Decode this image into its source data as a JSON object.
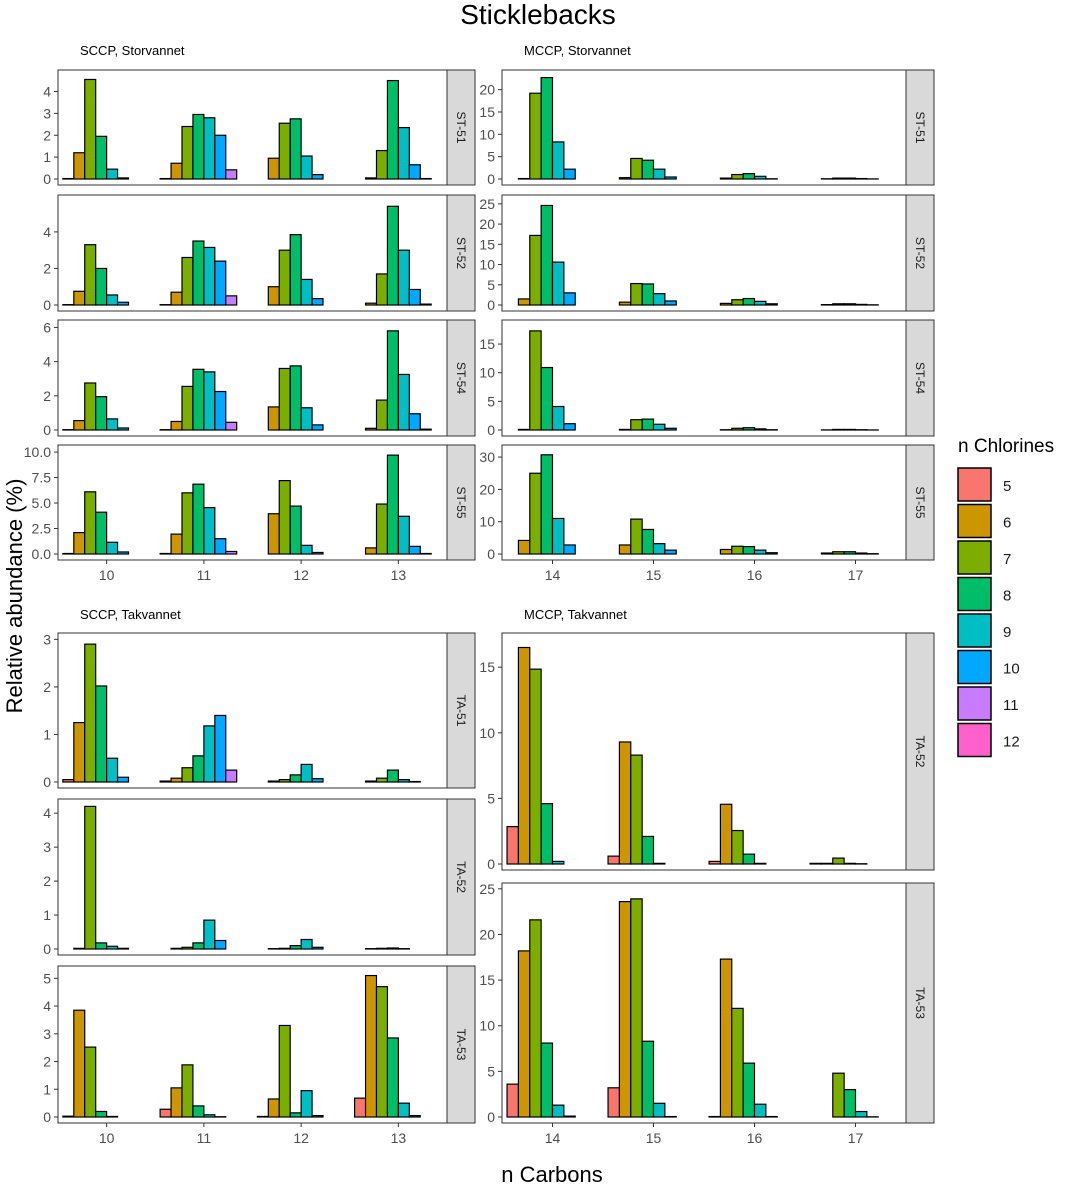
{
  "chart_data": {
    "type": "bar",
    "title": "Sticklebacks",
    "xlabel": "n Carbons",
    "ylabel": "Relative abundance (%)",
    "legend": {
      "title": "n Chlorines",
      "position": "right",
      "entries": [
        "5",
        "6",
        "7",
        "8",
        "9",
        "10",
        "11",
        "12"
      ],
      "colors": [
        "#F8766D",
        "#CD9600",
        "#7CAE00",
        "#00BE67",
        "#00BFC4",
        "#00A9FF",
        "#C77CFF",
        "#FF61CC"
      ]
    },
    "panel_groups": [
      {
        "title": "SCCP, Storvannet",
        "categories": [
          "10",
          "11",
          "12",
          "13"
        ],
        "cl_start": 5,
        "panels": [
          {
            "strip": "ST-51",
            "ylim": [
              0,
              4.8
            ],
            "yticks": [
              "0",
              "1",
              "2",
              "3",
              "4"
            ],
            "values": [
              [
                0.02,
                1.2,
                4.55,
                1.95,
                0.45,
                0.05,
                0,
                0
              ],
              [
                0.02,
                0.72,
                2.4,
                2.95,
                2.8,
                2.0,
                0.42,
                0
              ],
              [
                0,
                0.95,
                2.55,
                2.75,
                1.05,
                0.2,
                0,
                0
              ],
              [
                0,
                0.05,
                1.3,
                4.5,
                2.35,
                0.65,
                0.02,
                0
              ]
            ]
          },
          {
            "strip": "ST-52",
            "ylim": [
              0,
              5.8
            ],
            "yticks": [
              "0",
              "2",
              "4"
            ],
            "values": [
              [
                0.02,
                0.75,
                3.3,
                2.0,
                0.55,
                0.15,
                0,
                0
              ],
              [
                0.02,
                0.7,
                2.6,
                3.5,
                3.15,
                2.4,
                0.5,
                0
              ],
              [
                0,
                1.0,
                3.0,
                3.85,
                1.4,
                0.35,
                0,
                0
              ],
              [
                0,
                0.1,
                1.7,
                5.4,
                3.0,
                0.85,
                0.05,
                0
              ]
            ]
          },
          {
            "strip": "ST-54",
            "ylim": [
              0,
              6.2
            ],
            "yticks": [
              "0",
              "2",
              "4",
              "6"
            ],
            "values": [
              [
                0.02,
                0.55,
                2.75,
                1.95,
                0.65,
                0.12,
                0,
                0
              ],
              [
                0.02,
                0.5,
                2.55,
                3.55,
                3.4,
                2.25,
                0.45,
                0
              ],
              [
                0,
                1.35,
                3.6,
                3.75,
                1.3,
                0.3,
                0,
                0
              ],
              [
                0,
                0.1,
                1.75,
                5.8,
                3.25,
                0.95,
                0.05,
                0
              ]
            ]
          },
          {
            "strip": "ST-55",
            "ylim": [
              0,
              10.3
            ],
            "yticks": [
              "0.0",
              "2.5",
              "5.0",
              "7.5",
              "10.0"
            ],
            "values": [
              [
                0.05,
                2.1,
                6.1,
                4.1,
                1.15,
                0.2,
                0,
                0
              ],
              [
                0.05,
                1.95,
                6.0,
                6.85,
                4.55,
                1.5,
                0.25,
                0
              ],
              [
                0,
                3.95,
                7.2,
                4.7,
                0.85,
                0.15,
                0,
                0
              ],
              [
                0,
                0.6,
                4.9,
                9.7,
                3.7,
                0.75,
                0.05,
                0
              ]
            ]
          }
        ]
      },
      {
        "title": "MCCP, Storvannet",
        "categories": [
          "14",
          "15",
          "16",
          "17"
        ],
        "cl_start": 5,
        "panels": [
          {
            "strip": "ST-51",
            "ylim": [
              0,
              23.5
            ],
            "yticks": [
              "0",
              "5",
              "10",
              "15",
              "20"
            ],
            "values": [
              [
                0,
                0.1,
                19.2,
                22.7,
                8.3,
                2.2,
                0,
                0
              ],
              [
                0,
                0.3,
                4.6,
                4.2,
                2.2,
                0.45,
                0,
                0
              ],
              [
                0,
                0.2,
                1.0,
                1.2,
                0.6,
                0.05,
                0,
                0
              ],
              [
                0,
                0.05,
                0.2,
                0.2,
                0.1,
                0.02,
                0,
                0
              ]
            ]
          },
          {
            "strip": "ST-52",
            "ylim": [
              0,
              26.2
            ],
            "yticks": [
              "0",
              "5",
              "10",
              "15",
              "20",
              "25"
            ],
            "values": [
              [
                0,
                1.5,
                17.2,
                24.6,
                10.6,
                3.0,
                0,
                0
              ],
              [
                0,
                0.7,
                5.3,
                5.2,
                2.8,
                1.0,
                0,
                0
              ],
              [
                0,
                0.4,
                1.3,
                1.6,
                0.9,
                0.3,
                0,
                0
              ],
              [
                0,
                0.1,
                0.3,
                0.3,
                0.15,
                0.05,
                0,
                0
              ]
            ]
          },
          {
            "strip": "ST-54",
            "ylim": [
              0,
              18.5
            ],
            "yticks": [
              "0",
              "5",
              "10",
              "15"
            ],
            "values": [
              [
                0,
                0.1,
                17.3,
                10.9,
                4.1,
                1.1,
                0,
                0
              ],
              [
                0,
                0.1,
                1.8,
                1.9,
                1.0,
                0.3,
                0,
                0
              ],
              [
                0,
                0.05,
                0.3,
                0.4,
                0.2,
                0.05,
                0,
                0
              ],
              [
                0,
                0.02,
                0.1,
                0.1,
                0.05,
                0.01,
                0,
                0
              ]
            ]
          },
          {
            "strip": "ST-55",
            "ylim": [
              0,
              32.5
            ],
            "yticks": [
              "0",
              "10",
              "20",
              "30"
            ],
            "values": [
              [
                0,
                4.2,
                25.0,
                30.7,
                11.0,
                2.8,
                0,
                0
              ],
              [
                0,
                2.8,
                10.8,
                7.6,
                3.2,
                1.2,
                0,
                0
              ],
              [
                0,
                1.4,
                2.4,
                2.3,
                1.2,
                0.4,
                0,
                0
              ],
              [
                0,
                0.3,
                0.7,
                0.7,
                0.3,
                0.1,
                0,
                0
              ]
            ]
          }
        ]
      },
      {
        "title": "SCCP, Takvannet",
        "categories": [
          "10",
          "11",
          "12",
          "13"
        ],
        "cl_start": 5,
        "panels": [
          {
            "strip": "TA-51",
            "ylim": [
              0,
              3.05
            ],
            "yticks": [
              "0",
              "1",
              "2",
              "3"
            ],
            "values": [
              [
                0.05,
                1.25,
                2.9,
                2.02,
                0.5,
                0.1,
                0,
                0
              ],
              [
                0.02,
                0.08,
                0.3,
                0.55,
                1.18,
                1.4,
                0.25,
                0
              ],
              [
                0,
                0.02,
                0.05,
                0.15,
                0.37,
                0.07,
                0,
                0
              ],
              [
                0,
                0.02,
                0.08,
                0.25,
                0.05,
                0.01,
                0,
                0
              ]
            ]
          },
          {
            "strip": "TA-52",
            "ylim": [
              0,
              4.3
            ],
            "yticks": [
              "0",
              "1",
              "2",
              "3",
              "4"
            ],
            "values": [
              [
                0,
                0.02,
                4.2,
                0.18,
                0.08,
                0.02,
                0,
                0
              ],
              [
                0,
                0.02,
                0.05,
                0.18,
                0.85,
                0.25,
                0,
                0
              ],
              [
                0,
                0.01,
                0.02,
                0.1,
                0.28,
                0.05,
                0,
                0
              ],
              [
                0,
                0.01,
                0.02,
                0.03,
                0.01,
                0,
                0,
                0
              ]
            ]
          },
          {
            "strip": "TA-53",
            "ylim": [
              0,
              5.3
            ],
            "yticks": [
              "0",
              "1",
              "2",
              "3",
              "4",
              "5"
            ],
            "values": [
              [
                0.03,
                3.85,
                2.52,
                0.2,
                0.02,
                0,
                0,
                0
              ],
              [
                0.28,
                1.05,
                1.88,
                0.4,
                0.08,
                0.01,
                0,
                0
              ],
              [
                0.02,
                0.65,
                3.3,
                0.15,
                0.95,
                0.05,
                0,
                0
              ],
              [
                0.68,
                5.1,
                4.7,
                2.85,
                0.5,
                0.05,
                0,
                0
              ]
            ]
          }
        ]
      },
      {
        "title": "MCCP, Takvannet",
        "categories": [
          "14",
          "15",
          "16",
          "17"
        ],
        "cl_start": 5,
        "panels": [
          {
            "strip": "TA-52",
            "ylim": [
              0,
              17.3
            ],
            "yticks": [
              "0",
              "5",
              "10",
              "15"
            ],
            "values": [
              [
                2.85,
                16.5,
                14.85,
                4.6,
                0.2,
                0,
                0,
                0
              ],
              [
                0.6,
                9.3,
                8.3,
                2.1,
                0.05,
                0,
                0,
                0
              ],
              [
                0.2,
                4.55,
                2.55,
                0.75,
                0.05,
                0,
                0,
                0
              ],
              [
                0.05,
                0.05,
                0.45,
                0.05,
                0.02,
                0,
                0,
                0
              ]
            ]
          },
          {
            "strip": "TA-53",
            "ylim": [
              0,
              25.2
            ],
            "yticks": [
              "0",
              "5",
              "10",
              "15",
              "20",
              "25"
            ],
            "values": [
              [
                3.6,
                18.2,
                21.6,
                8.1,
                1.3,
                0.1,
                0,
                0
              ],
              [
                3.2,
                23.6,
                23.9,
                8.3,
                1.5,
                0.05,
                0,
                0
              ],
              [
                0.05,
                17.3,
                11.9,
                5.9,
                1.4,
                0.05,
                0,
                0
              ],
              [
                0,
                0,
                4.8,
                3.0,
                0.6,
                0.02,
                0,
                0
              ]
            ]
          }
        ]
      }
    ]
  }
}
